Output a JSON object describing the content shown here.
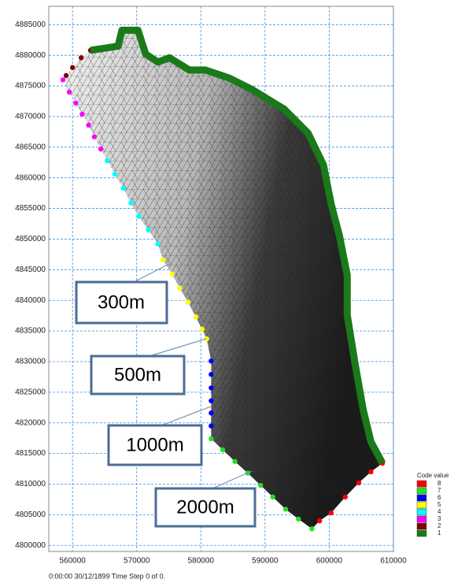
{
  "chart_data": {
    "type": "mesh",
    "xlim": [
      556300,
      610000
    ],
    "ylim": [
      4799000,
      4888000
    ],
    "xticks": [
      560000,
      570000,
      580000,
      590000,
      600000,
      610000
    ],
    "yticks": [
      4800000,
      4805000,
      4810000,
      4815000,
      4820000,
      4825000,
      4830000,
      4835000,
      4840000,
      4845000,
      4850000,
      4855000,
      4860000,
      4865000,
      4870000,
      4875000,
      4880000,
      4885000
    ],
    "grid": true,
    "legend_title": "Code value",
    "annotations": [
      "300m",
      "500m",
      "1000m",
      "2000m"
    ],
    "footer": "0:00:00 30/12/1899  Time Step 0 of 0.",
    "series": [
      {
        "name": "8",
        "color": "#ff0000",
        "x": [
          598500,
          600300,
          602500,
          604600,
          606500,
          608300
        ],
        "y": [
          4804000,
          4805300,
          4807900,
          4810200,
          4812000,
          4813400
        ]
      },
      {
        "name": "7",
        "color": "#22e022",
        "x": [
          581600,
          583400,
          585300,
          587300,
          589300,
          591200,
          593200,
          595200,
          597300
        ],
        "y": [
          4817400,
          4815600,
          4813700,
          4811800,
          4809800,
          4807900,
          4805900,
          4804300,
          4802700
        ]
      },
      {
        "name": "6",
        "color": "#0000ff",
        "x": [
          581600,
          581600,
          581600,
          581600,
          581600,
          581600
        ],
        "y": [
          4830100,
          4827900,
          4825700,
          4823600,
          4821600,
          4819500
        ]
      },
      {
        "name": "5",
        "color": "#ffff00",
        "x": [
          574100,
          575500,
          576700,
          578000,
          579200,
          580200,
          580900
        ],
        "y": [
          4846600,
          4844300,
          4842000,
          4839700,
          4837300,
          4835300,
          4833700
        ]
      },
      {
        "name": "4",
        "color": "#00ffff",
        "x": [
          565400,
          566600,
          567900,
          569100,
          570300,
          571800,
          573300
        ],
        "y": [
          4862800,
          4860600,
          4858300,
          4855900,
          4853700,
          4851500,
          4849200
        ]
      },
      {
        "name": "3",
        "color": "#ff00ff",
        "x": [
          558500,
          559500,
          560500,
          561500,
          562500,
          563400,
          564400
        ],
        "y": [
          4876000,
          4874000,
          4872200,
          4870400,
          4868600,
          4866700,
          4864700
        ]
      },
      {
        "name": "2",
        "color": "#800000",
        "x": [
          562800,
          561350,
          560000,
          559000
        ],
        "y": [
          4880800,
          4879600,
          4878000,
          4876700
        ]
      },
      {
        "name": "1",
        "color": "#1a7a1a",
        "x": [
          562800,
          567100,
          567700,
          570200,
          571400,
          573300,
          575100,
          578200,
          580700,
          584400,
          588000,
          593000,
          596700,
          599100,
          600300,
          601600,
          602800,
          602800,
          604000,
          605300,
          606500,
          608300
        ],
        "y": [
          4880800,
          4881500,
          4884100,
          4884100,
          4880200,
          4878900,
          4879600,
          4877600,
          4877600,
          4876300,
          4874400,
          4871200,
          4867300,
          4862100,
          4855700,
          4850500,
          4844100,
          4837600,
          4829800,
          4822100,
          4816900,
          4813400
        ]
      }
    ]
  }
}
